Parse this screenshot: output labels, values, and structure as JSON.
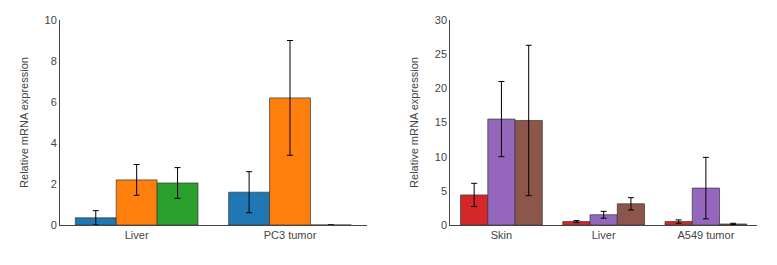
{
  "chart_data": [
    {
      "type": "bar",
      "categories": [
        "Liver",
        "PC3 tumor"
      ],
      "series": [
        {
          "values": [
            0.35,
            1.6
          ],
          "errors": [
            0.35,
            1.0
          ]
        },
        {
          "values": [
            2.2,
            6.2
          ],
          "errors": [
            0.75,
            2.8
          ]
        },
        {
          "values": [
            2.05,
            0.0
          ],
          "errors": [
            0.75,
            0.0
          ]
        }
      ],
      "ylabel": "Relative mRNA expression",
      "ylim": [
        0,
        10
      ],
      "yticks": [
        0,
        2,
        4,
        6,
        8,
        10
      ],
      "grid": false
    },
    {
      "type": "bar",
      "categories": [
        "Skin",
        "Liver",
        "A549 tumor"
      ],
      "series": [
        {
          "values": [
            4.4,
            0.5,
            0.5
          ],
          "errors": [
            1.7,
            0.15,
            0.25
          ]
        },
        {
          "values": [
            15.5,
            1.5,
            5.4
          ],
          "errors": [
            5.5,
            0.5,
            4.5
          ]
        },
        {
          "values": [
            15.3,
            3.1,
            0.15
          ],
          "errors": [
            11.0,
            0.9,
            0.1
          ]
        }
      ],
      "ylabel": "Relative mRNA expression",
      "ylim": [
        0,
        30
      ],
      "yticks": [
        0,
        5,
        10,
        15,
        20,
        25,
        30
      ],
      "grid": false
    }
  ]
}
